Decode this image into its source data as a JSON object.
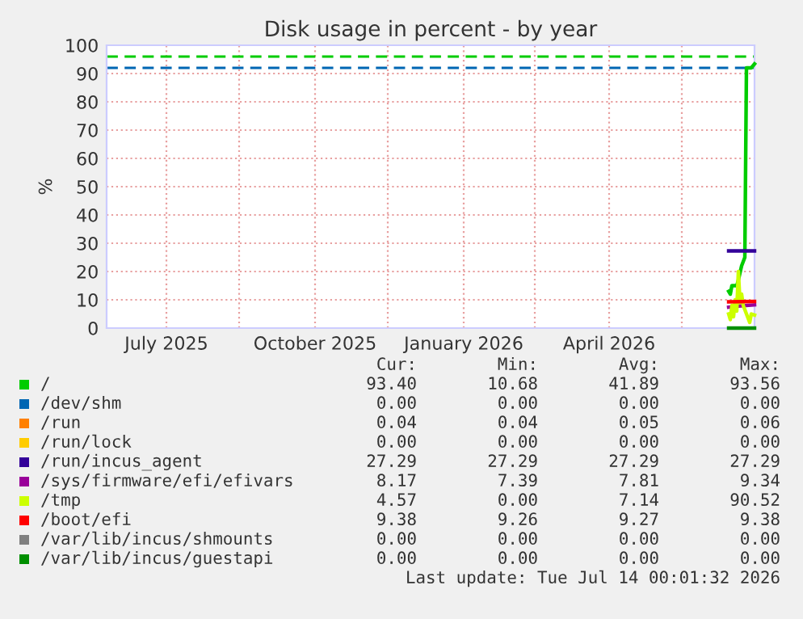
{
  "chart_data": {
    "type": "line",
    "title": "Disk usage in percent - by year",
    "ylabel": "%",
    "xlim": [
      "2025-05-25",
      "2026-06-30"
    ],
    "ylim": [
      0,
      100
    ],
    "yticks": [
      0,
      10,
      20,
      30,
      40,
      50,
      60,
      70,
      80,
      90,
      100
    ],
    "xticks": [
      {
        "value": "2025-07-01",
        "label": "July 2025"
      },
      {
        "value": "2025-10-01",
        "label": "October 2025"
      },
      {
        "value": "2026-01-01",
        "label": "January 2026"
      },
      {
        "value": "2026-04-01",
        "label": "April 2026"
      },
      {
        "value": "2025-08-15",
        "label": null
      },
      {
        "value": "2025-11-15",
        "label": null
      },
      {
        "value": "2026-02-14",
        "label": null
      },
      {
        "value": "2026-05-16",
        "label": null
      }
    ],
    "grid": true,
    "legend": "bottom",
    "ref_lines": [
      {
        "axis": "y",
        "value": 96,
        "color": "#00cc00",
        "line_style": "dashed"
      },
      {
        "axis": "y",
        "value": 92,
        "color": "#0066b3",
        "line_style": "dashed"
      }
    ],
    "series": [
      {
        "name": "/",
        "color": "#00cc00",
        "x": [
          "2026-06-14",
          "2026-06-15",
          "2026-06-16",
          "2026-06-19",
          "2026-06-20",
          "2026-06-22",
          "2026-06-24",
          "2026-06-25",
          "2026-06-28",
          "2026-06-30"
        ],
        "values": [
          13,
          12,
          15,
          15,
          17,
          22,
          25,
          92,
          92,
          93.4
        ]
      },
      {
        "name": "/dev/shm",
        "color": "#0066b3"
      },
      {
        "name": "/run",
        "color": "#ff8000"
      },
      {
        "name": "/run/lock",
        "color": "#ffcc00"
      },
      {
        "name": "/run/incus_agent",
        "color": "#330099",
        "x": [
          "2026-06-14",
          "2026-06-30"
        ],
        "values": [
          27.3,
          27.3
        ]
      },
      {
        "name": "/sys/firmware/efi/efivars",
        "color": "#990099",
        "x": [
          "2026-06-14",
          "2026-06-20",
          "2026-06-30"
        ],
        "values": [
          7.4,
          7.8,
          8.2
        ]
      },
      {
        "name": "/tmp",
        "color": "#ccff00",
        "x": [
          "2026-06-14",
          "2026-06-15",
          "2026-06-16",
          "2026-06-17",
          "2026-06-18",
          "2026-06-19",
          "2026-06-20",
          "2026-06-21",
          "2026-06-22",
          "2026-06-23",
          "2026-06-27",
          "2026-06-28",
          "2026-06-30"
        ],
        "values": [
          5,
          3,
          8,
          4,
          10,
          6,
          20,
          9,
          12,
          8,
          2,
          5,
          4.6
        ]
      },
      {
        "name": "/boot/efi",
        "color": "#ff0000",
        "x": [
          "2026-06-14",
          "2026-06-30"
        ],
        "values": [
          9.3,
          9.4
        ]
      },
      {
        "name": "/var/lib/incus/shmounts",
        "color": "#808080"
      },
      {
        "name": "/var/lib/incus/guestapi",
        "color": "#008f00",
        "x": [
          "2026-06-14",
          "2026-06-30"
        ],
        "values": [
          0,
          0
        ]
      }
    ],
    "annotations": [
      "Cur:",
      "Min:",
      "Avg:",
      "Max:",
      "93.40",
      "10.68",
      "41.89",
      "93.56",
      "0.00",
      "0.00",
      "0.00",
      "0.00",
      "0.04",
      "0.04",
      "0.05",
      "0.06",
      "0.00",
      "0.00",
      "0.00",
      "0.00",
      "27.29",
      "27.29",
      "27.29",
      "27.29",
      "8.17",
      "7.39",
      "7.81",
      "9.34",
      "4.57",
      "0.00",
      "7.14",
      "90.52",
      "9.38",
      "9.26",
      "9.27",
      "9.38",
      "0.00",
      "0.00",
      "0.00",
      "0.00",
      "0.00",
      "0.00",
      "0.00",
      "0.00",
      "Last update: Tue Jul 14 00:01:32 2026"
    ]
  }
}
